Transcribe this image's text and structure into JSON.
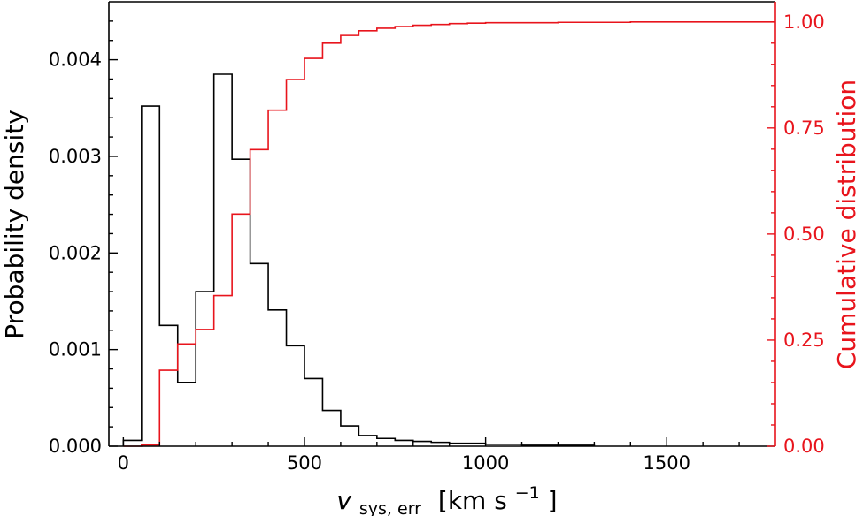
{
  "chart_data": {
    "type": "histogram",
    "xlabel_main": "v",
    "xlabel_sub": "sys, err",
    "xlabel_unit": "[km s",
    "xlabel_exp": "−1",
    "xlabel_close": "]",
    "ylabel_left": "Probability density",
    "ylabel_right": "Cumulative distribution",
    "xlim": [
      -40,
      1800
    ],
    "ylim_left": [
      0,
      0.0046
    ],
    "ylim_right": [
      0,
      1.0474
    ],
    "x_ticks": [
      {
        "value": 0,
        "label": "0"
      },
      {
        "value": 500,
        "label": "500"
      },
      {
        "value": 1000,
        "label": "1000"
      },
      {
        "value": 1500,
        "label": "1500"
      }
    ],
    "y_ticks_left": [
      {
        "value": 0,
        "label": "0.000"
      },
      {
        "value": 0.001,
        "label": "0.001"
      },
      {
        "value": 0.002,
        "label": "0.002"
      },
      {
        "value": 0.003,
        "label": "0.003"
      },
      {
        "value": 0.004,
        "label": "0.004"
      }
    ],
    "y_ticks_right": [
      {
        "value": 0,
        "label": "0.00"
      },
      {
        "value": 0.25,
        "label": "0.25"
      },
      {
        "value": 0.5,
        "label": "0.50"
      },
      {
        "value": 0.75,
        "label": "0.75"
      },
      {
        "value": 1.0,
        "label": "1.00"
      }
    ],
    "bin_edges": [
      0,
      50,
      100,
      150,
      200,
      250,
      300,
      350,
      400,
      450,
      500,
      550,
      600,
      650,
      700,
      750,
      800,
      850,
      900,
      950,
      1000,
      1050,
      1100,
      1150,
      1200,
      1250,
      1300
    ],
    "density": [
      6e-05,
      0.00352,
      0.00125,
      0.00066,
      0.0016,
      0.00385,
      0.00297,
      0.00189,
      0.00141,
      0.00104,
      0.0007,
      0.00037,
      0.00021,
      0.00011,
      8e-05,
      6e-05,
      5e-05,
      4e-05,
      3e-05,
      3e-05,
      2e-05,
      2e-05,
      1e-05,
      1e-05,
      1e-05,
      1e-05
    ],
    "cdf_x": [
      0,
      50,
      100,
      150,
      200,
      250,
      300,
      350,
      400,
      450,
      500,
      550,
      600,
      650,
      700,
      750,
      800,
      850,
      900,
      950,
      1000,
      1100,
      1200,
      1300,
      1400,
      1500,
      1600,
      1700,
      1800
    ],
    "cdf_y": [
      0.0,
      0.003,
      0.179,
      0.241,
      0.275,
      0.355,
      0.547,
      0.699,
      0.792,
      0.864,
      0.914,
      0.95,
      0.968,
      0.979,
      0.985,
      0.989,
      0.992,
      0.994,
      0.996,
      0.997,
      0.998,
      0.998,
      0.999,
      0.999,
      1.0,
      1.0,
      1.0,
      1.0,
      1.0
    ],
    "colors": {
      "histogram": "#000000",
      "cumulative": "#e8141c"
    },
    "grid": false
  }
}
